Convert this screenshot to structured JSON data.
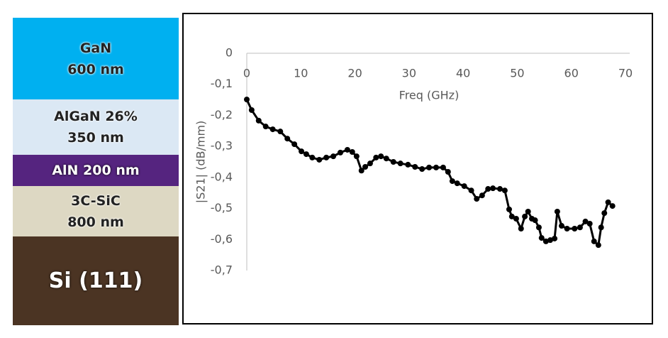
{
  "layers": [
    {
      "lines": [
        "GaN",
        "600 nm"
      ],
      "color": "#00b0f0"
    },
    {
      "lines": [
        "AlGaN 26%",
        "350 nm"
      ],
      "color": "#dbe8f4"
    },
    {
      "lines": [
        "AlN 200 nm"
      ],
      "color": "#55247f"
    },
    {
      "lines": [
        "3C-SiC",
        "800 nm"
      ],
      "color": "#ddd8c3"
    },
    {
      "lines": [
        "Si (111)"
      ],
      "color": "#4b3423"
    }
  ],
  "chart_data": {
    "type": "line",
    "x_label": "Freq (GHz)",
    "y_label": "|S21| (dB/mm)",
    "xlim": [
      0,
      70
    ],
    "xticks": [
      0,
      10,
      20,
      30,
      40,
      50,
      60,
      70
    ],
    "ylim": [
      -0.7,
      0
    ],
    "yticks": [
      0,
      {
        "value": -0.1,
        "label": "-0,1"
      },
      {
        "value": -0.2,
        "label": "-0,2"
      },
      {
        "value": -0.3,
        "label": "-0,3"
      },
      {
        "value": -0.4,
        "label": "-0,4"
      },
      {
        "value": -0.5,
        "label": "-0,5"
      },
      {
        "value": -0.6,
        "label": "-0,6"
      },
      {
        "value": -0.7,
        "label": "-0,7"
      }
    ],
    "x": [
      0,
      0.9,
      2.2,
      3.5,
      4.8,
      6.2,
      7.5,
      8.8,
      10.1,
      11,
      12.1,
      13.4,
      14.7,
      16,
      17.3,
      18.6,
      19.5,
      20.3,
      21.2,
      21.9,
      22.8,
      23.9,
      24.8,
      25.8,
      27.1,
      28.4,
      29.8,
      31.1,
      32.4,
      33.7,
      35,
      36.3,
      37.2,
      38,
      38.9,
      40.2,
      41.5,
      42.5,
      43.5,
      44.6,
      45.5,
      46.8,
      47.7,
      48.5,
      49,
      49.8,
      50.7,
      51.4,
      52,
      52.7,
      53.3,
      54,
      54.5,
      55.3,
      56.1,
      56.9,
      57.4,
      58.2,
      59.2,
      60.6,
      61.6,
      62.6,
      63.4,
      64.2,
      65,
      65.5,
      66.1,
      66.8,
      67.6
    ],
    "series": [
      {
        "color": "#000000",
        "values": [
          -0.149,
          -0.183,
          -0.217,
          -0.236,
          -0.245,
          -0.252,
          -0.275,
          -0.293,
          -0.316,
          -0.325,
          -0.336,
          -0.343,
          -0.336,
          -0.332,
          -0.32,
          -0.311,
          -0.318,
          -0.332,
          -0.378,
          -0.366,
          -0.355,
          -0.336,
          -0.332,
          -0.339,
          -0.35,
          -0.355,
          -0.359,
          -0.366,
          -0.373,
          -0.368,
          -0.368,
          -0.368,
          -0.382,
          -0.412,
          -0.419,
          -0.428,
          -0.442,
          -0.469,
          -0.458,
          -0.437,
          -0.435,
          -0.437,
          -0.442,
          -0.503,
          -0.526,
          -0.533,
          -0.565,
          -0.526,
          -0.51,
          -0.533,
          -0.538,
          -0.561,
          -0.595,
          -0.606,
          -0.602,
          -0.597,
          -0.51,
          -0.556,
          -0.565,
          -0.565,
          -0.561,
          -0.542,
          -0.549,
          -0.606,
          -0.618,
          -0.561,
          -0.515,
          -0.48,
          -0.492
        ]
      }
    ]
  }
}
